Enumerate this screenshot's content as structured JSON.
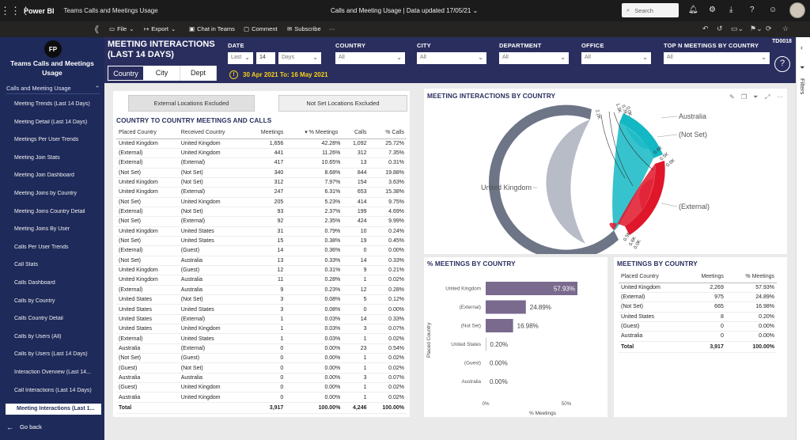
{
  "app": {
    "waffle": "⋮⋮⋮",
    "brand": "Power BI",
    "breadcrumb": "Teams Calls and Meetings Usage",
    "center": "Calls and Meeting Usage  |  Data updated 17/05/21  ⌄",
    "search_placeholder": "Search"
  },
  "cmdbar": {
    "collapse": "《",
    "file": "File",
    "export": "Export",
    "chat": "Chat in Teams",
    "comment": "Comment",
    "subscribe": "Subscribe",
    "more": "···"
  },
  "nav": {
    "logo": "FP",
    "title": "Teams Calls and Meetings Usage",
    "section": "Calls and Meeting Usage",
    "items": [
      "Meeting Trends (Last 14 Days)",
      "Meeting Detail (Last 14 Days)",
      "Meetings Per User Trends",
      "Meeting Join Stats",
      "Meeting Join Dashboard",
      "Meeting Joins by Country",
      "Meeting Joins Country Detail",
      "Meeting Joins By User",
      "Calls Per User Trends",
      "Call Stats",
      "Calls Dashboard",
      "Calls by Country",
      "Calls Country Detail",
      "Calls by Users (All)",
      "Calls by Users (Last 14 Days)",
      "Interaction Overview (Last 14...",
      "Call Interactions (Last 14 Days)",
      "Meeting Interactions (Last 1..."
    ],
    "back": "Go back"
  },
  "filters_label": "Filters",
  "header": {
    "title": "MEETING INTERACTIONS (LAST 14 DAYS)",
    "code": "TD0018",
    "date": {
      "label": "DATE",
      "mode": "Last",
      "num": "14",
      "unit": "Days"
    },
    "country": {
      "label": "COUNTRY",
      "value": "All"
    },
    "city": {
      "label": "CITY",
      "value": "All"
    },
    "department": {
      "label": "DEPARTMENT",
      "value": "All"
    },
    "office": {
      "label": "OFFICE",
      "value": "All"
    },
    "topn": {
      "label": "TOP N MEETINGS BY COUNTRY",
      "value": "All"
    },
    "tabs": [
      "Country",
      "City",
      "Dept"
    ],
    "daterange": "30 Apr 2021 To: 16 May 2021",
    "warn": "!",
    "help": "?"
  },
  "left_panel": {
    "btn_external": "External Locations Excluded",
    "btn_notset": "Not Set Locations Excluded",
    "title": "COUNTRY TO COUNTRY MEETINGS AND CALLS",
    "columns": [
      "Placed Country",
      "Received Country",
      "Meetings",
      "% Meetings",
      "Calls",
      "% Calls"
    ],
    "rows": [
      [
        "United Kingdom",
        "United Kingdom",
        "1,656",
        "42.28%",
        "1,092",
        "25.72%"
      ],
      [
        "(External)",
        "United Kingdom",
        "441",
        "11.26%",
        "312",
        "7.35%"
      ],
      [
        "(External)",
        "(External)",
        "417",
        "10.65%",
        "13",
        "0.31%"
      ],
      [
        "(Not Set)",
        "(Not Set)",
        "340",
        "8.68%",
        "844",
        "19.88%"
      ],
      [
        "United Kingdom",
        "(Not Set)",
        "312",
        "7.97%",
        "154",
        "3.63%"
      ],
      [
        "United Kingdom",
        "(External)",
        "247",
        "6.31%",
        "653",
        "15.38%"
      ],
      [
        "(Not Set)",
        "United Kingdom",
        "205",
        "5.23%",
        "414",
        "9.75%"
      ],
      [
        "(External)",
        "(Not Set)",
        "93",
        "2.37%",
        "199",
        "4.69%"
      ],
      [
        "(Not Set)",
        "(External)",
        "92",
        "2.35%",
        "424",
        "9.99%"
      ],
      [
        "United Kingdom",
        "United States",
        "31",
        "0.79%",
        "10",
        "0.24%"
      ],
      [
        "(Not Set)",
        "United States",
        "15",
        "0.38%",
        "19",
        "0.45%"
      ],
      [
        "(External)",
        "(Guest)",
        "14",
        "0.36%",
        "0",
        "0.00%"
      ],
      [
        "(Not Set)",
        "Australia",
        "13",
        "0.33%",
        "14",
        "0.33%"
      ],
      [
        "United Kingdom",
        "(Guest)",
        "12",
        "0.31%",
        "9",
        "0.21%"
      ],
      [
        "United Kingdom",
        "Australia",
        "11",
        "0.28%",
        "1",
        "0.02%"
      ],
      [
        "(External)",
        "Australia",
        "9",
        "0.23%",
        "12",
        "0.28%"
      ],
      [
        "United States",
        "(Not Set)",
        "3",
        "0.08%",
        "5",
        "0.12%"
      ],
      [
        "United States",
        "United States",
        "3",
        "0.08%",
        "0",
        "0.00%"
      ],
      [
        "United States",
        "(External)",
        "1",
        "0.03%",
        "14",
        "0.33%"
      ],
      [
        "United States",
        "United Kingdom",
        "1",
        "0.03%",
        "3",
        "0.07%"
      ],
      [
        "(External)",
        "United States",
        "1",
        "0.03%",
        "1",
        "0.02%"
      ],
      [
        "Australia",
        "(External)",
        "0",
        "0.00%",
        "23",
        "0.54%"
      ],
      [
        "(Not Set)",
        "(Guest)",
        "0",
        "0.00%",
        "1",
        "0.02%"
      ],
      [
        "(Guest)",
        "(Not Set)",
        "0",
        "0.00%",
        "1",
        "0.02%"
      ],
      [
        "Australia",
        "Australia",
        "0",
        "0.00%",
        "3",
        "0.07%"
      ],
      [
        "(Guest)",
        "United Kingdom",
        "0",
        "0.00%",
        "1",
        "0.02%"
      ],
      [
        "Australia",
        "United Kingdom",
        "0",
        "0.00%",
        "1",
        "0.02%"
      ]
    ],
    "total": [
      "Total",
      "",
      "3,917",
      "100.00%",
      "4,246",
      "100.00%"
    ]
  },
  "chord": {
    "title": "MEETING INTERACTIONS BY COUNTRY",
    "labels": [
      "Australia",
      "(Not Set)",
      "United Kingdom",
      "(External)"
    ],
    "tick_labels": [
      "2.2K",
      "1.3K",
      "0.7K",
      "0.0K",
      "0.6K",
      "0.5K",
      "0.0K",
      "0.6K",
      "0.5K",
      "0.0K"
    ],
    "colors": {
      "uk": "#6d7587",
      "notset": "#14b8c4",
      "external": "#e0162a"
    }
  },
  "bar_panel": {
    "title": "% MEETINGS BY COUNTRY",
    "chart_data": {
      "type": "bar",
      "orientation": "horizontal",
      "categories": [
        "United Kingdom",
        "(External)",
        "(Not Set)",
        "United States",
        "(Guest)",
        "Australia"
      ],
      "values": [
        57.93,
        24.89,
        16.98,
        0.2,
        0.0,
        0.0
      ],
      "value_labels": [
        "57.93%",
        "24.89%",
        "16.98%",
        "0.20%",
        "0.00%",
        "0.00%"
      ],
      "xlabel": "% Meetings",
      "ylabel": "Placed Country",
      "xlim": [
        0,
        50
      ],
      "x_ticks": [
        "0%",
        "50%"
      ],
      "bar_color": "#7a6a8e"
    }
  },
  "right_table": {
    "title": "MEETINGS BY COUNTRY",
    "columns": [
      "Placed Country",
      "Meetings",
      "% Meetings"
    ],
    "rows": [
      [
        "United Kingdom",
        "2,269",
        "57.93%"
      ],
      [
        "(External)",
        "975",
        "24.89%"
      ],
      [
        "(Not Set)",
        "665",
        "16.98%"
      ],
      [
        "United States",
        "8",
        "0.20%"
      ],
      [
        "(Guest)",
        "0",
        "0.00%"
      ],
      [
        "Australia",
        "0",
        "0.00%"
      ]
    ],
    "total": [
      "Total",
      "3,917",
      "100.00%"
    ]
  }
}
